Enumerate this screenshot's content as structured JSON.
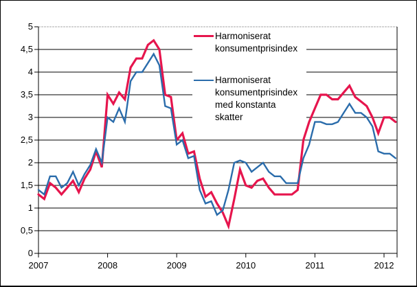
{
  "figure": {
    "background": "#ffffff",
    "frame_color": "#000000",
    "top_border_color": "#a8a8a8"
  },
  "chart_data": {
    "type": "line",
    "title": "",
    "xlabel": "",
    "ylabel": "",
    "x_unit": "month",
    "x_start": "2007-01",
    "x_end": "2012-03",
    "x_tick_labels": [
      "2007",
      "2008",
      "2009",
      "2010",
      "2011",
      "2012"
    ],
    "y_ticks": [
      0,
      0.5,
      1,
      1.5,
      2,
      2.5,
      3,
      3.5,
      4,
      4.5,
      5
    ],
    "y_tick_labels": [
      "0",
      "0,5",
      "1",
      "1,5",
      "2",
      "2,5",
      "3",
      "3,5",
      "4",
      "4,5",
      "5"
    ],
    "ylim": [
      0,
      5
    ],
    "grid": "horizontal-black-solid",
    "legend_position": "inside-top",
    "series": [
      {
        "name": "Harmoniserat konsumentprisindex",
        "color": "#e6154d",
        "line_width": 3.2,
        "values": [
          1.3,
          1.2,
          1.55,
          1.45,
          1.3,
          1.45,
          1.6,
          1.35,
          1.65,
          1.85,
          2.25,
          1.9,
          3.5,
          3.3,
          3.55,
          3.4,
          4.1,
          4.3,
          4.3,
          4.6,
          4.7,
          4.5,
          3.5,
          3.45,
          2.5,
          2.65,
          2.2,
          2.25,
          1.65,
          1.25,
          1.35,
          1.1,
          0.9,
          0.6,
          1.2,
          1.85,
          1.5,
          1.45,
          1.6,
          1.65,
          1.45,
          1.3,
          1.3,
          1.3,
          1.3,
          1.4,
          2.5,
          2.9,
          3.2,
          3.5,
          3.5,
          3.4,
          3.4,
          3.55,
          3.7,
          3.45,
          3.35,
          3.25,
          3.0,
          2.65,
          3.0,
          3.0,
          2.9
        ]
      },
      {
        "name": "Harmoniserat konsumentprisindex med konstanta skatter",
        "color": "#2a6cab",
        "line_width": 2.4,
        "values": [
          1.4,
          1.3,
          1.7,
          1.7,
          1.45,
          1.55,
          1.8,
          1.5,
          1.75,
          1.95,
          2.3,
          2.0,
          3.0,
          2.9,
          3.2,
          2.9,
          3.8,
          4.0,
          4.0,
          4.2,
          4.4,
          4.15,
          3.25,
          3.2,
          2.4,
          2.5,
          2.1,
          2.15,
          1.4,
          1.1,
          1.15,
          0.85,
          0.95,
          1.4,
          2.0,
          2.05,
          2.0,
          1.8,
          1.9,
          2.0,
          1.8,
          1.7,
          1.7,
          1.55,
          1.55,
          1.55,
          2.1,
          2.4,
          2.9,
          2.9,
          2.85,
          2.85,
          2.9,
          3.1,
          3.3,
          3.1,
          3.1,
          3.0,
          2.8,
          2.25,
          2.2,
          2.2,
          2.1
        ]
      }
    ],
    "legend": [
      {
        "lines": [
          "Harmoniserat",
          "konsumentprisindex"
        ]
      },
      {
        "lines": [
          "Harmoniserat",
          "konsumentprisindex",
          "med konstanta",
          "skatter"
        ]
      }
    ]
  }
}
